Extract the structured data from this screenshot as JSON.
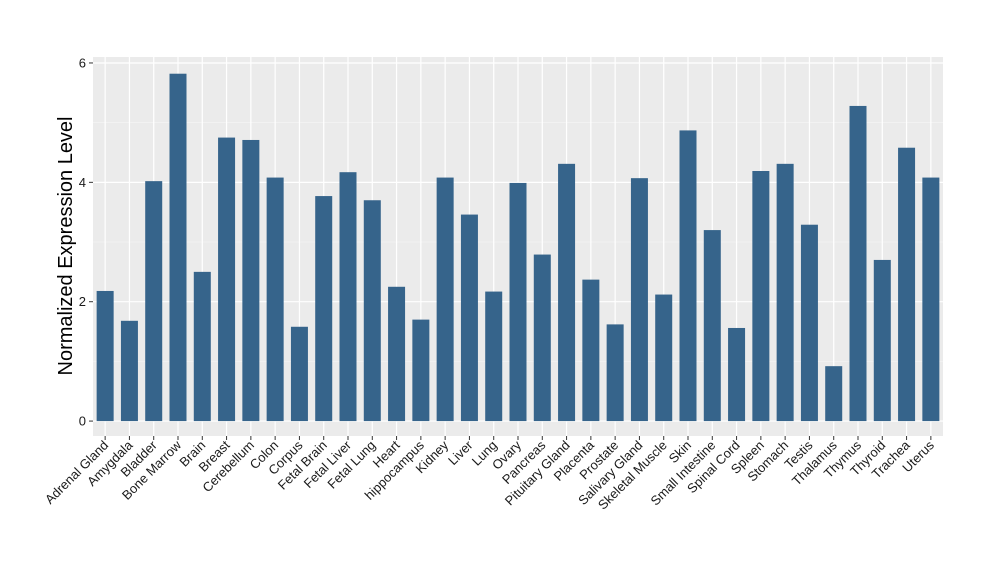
{
  "chart_data": {
    "type": "bar",
    "ylabel": "Normalized Expression Level",
    "xlabel": "",
    "ylim": [
      -0.25,
      6.1
    ],
    "yticks": [
      0,
      2,
      4,
      6
    ],
    "ytick_labels": [
      "0",
      "2",
      "4",
      "6"
    ],
    "grid": true,
    "categories": [
      "Adrenal Gland",
      "Amygdala",
      "Bladder",
      "Bone Marrow",
      "Brain",
      "Breast",
      "Cerebellum",
      "Colon",
      "Corpus",
      "Fetal Brain",
      "Fetal Liver",
      "Fetal Lung",
      "Heart",
      "hippocampus",
      "Kidney",
      "Liver",
      "Lung",
      "Ovary",
      "Pancreas",
      "Pituitary Gland",
      "Placenta",
      "Prostate",
      "Salivary Gland",
      "Skeletal Muscle",
      "Skin",
      "Small Intestine",
      "Spinal Cord",
      "Spleen",
      "Stomach",
      "Testis",
      "Thalamus",
      "Thymus",
      "Thyroid",
      "Trachea",
      "Uterus"
    ],
    "values": [
      2.18,
      1.68,
      4.02,
      5.82,
      2.5,
      4.75,
      4.71,
      4.08,
      1.58,
      3.77,
      4.17,
      3.7,
      2.25,
      1.7,
      4.08,
      3.46,
      2.17,
      3.99,
      2.79,
      4.31,
      2.37,
      1.62,
      4.07,
      2.12,
      4.87,
      3.2,
      1.56,
      4.19,
      4.31,
      3.29,
      0.92,
      5.28,
      2.7,
      4.58,
      4.08
    ],
    "colors": {
      "bar": "#36648b",
      "panel": "#ebebeb",
      "grid_major": "#ffffff",
      "grid_minor": "#f5f5f5",
      "tick": "#333333"
    }
  }
}
